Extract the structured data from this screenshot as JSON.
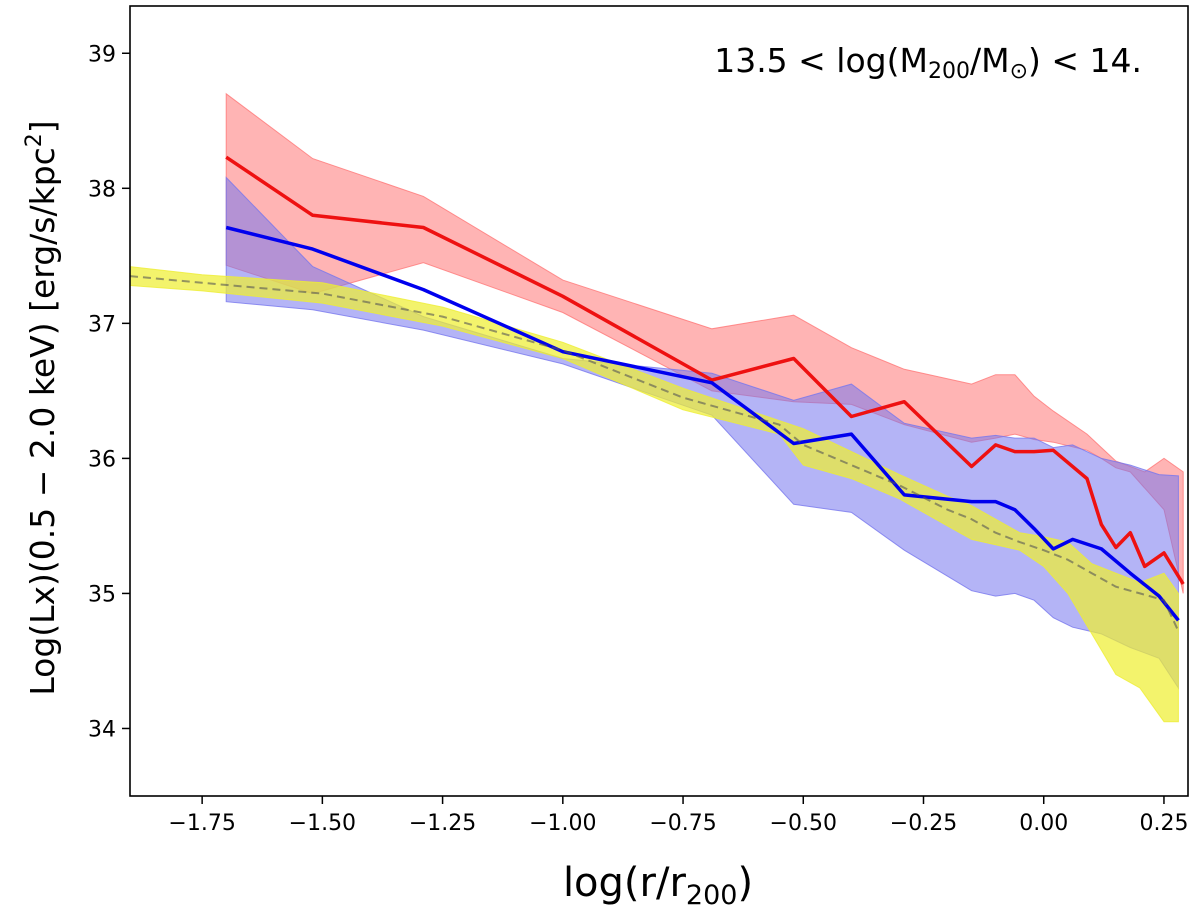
{
  "chart_data": {
    "type": "line",
    "title": "",
    "annotation": {
      "prefix": "13.5 < log(M",
      "sub1": "200",
      "mid": "/M",
      "sub2": "⊙",
      "suffix": ") < 14."
    },
    "xlabel": {
      "main": "log(r/r",
      "sub": "200",
      "close": ")"
    },
    "ylabel": {
      "main": "Log(Lx)(0.5 − 2.0 keV) [erg/s/kpc",
      "sup": "2",
      "close": "]"
    },
    "xlim": [
      -1.9,
      0.3
    ],
    "ylim": [
      33.5,
      39.35
    ],
    "x_ticks": [
      -1.75,
      -1.5,
      -1.25,
      -1.0,
      -0.75,
      -0.5,
      -0.25,
      0.0,
      0.25
    ],
    "x_tick_labels": [
      "−1.75",
      "−1.50",
      "−1.25",
      "−1.00",
      "−0.75",
      "−0.50",
      "−0.25",
      "0.00",
      "0.25"
    ],
    "y_ticks": [
      34,
      35,
      36,
      37,
      38,
      39
    ],
    "y_tick_labels": [
      "34",
      "35",
      "36",
      "37",
      "38",
      "39"
    ],
    "grid": false,
    "series": [
      {
        "name": "red",
        "color": "#ee1111",
        "band_color": "#ff7777",
        "x": [
          -1.7,
          -1.52,
          -1.29,
          -1.0,
          -0.69,
          -0.52,
          -0.4,
          -0.29,
          -0.15,
          -0.1,
          -0.06,
          -0.02,
          0.02,
          0.09,
          0.12,
          0.15,
          0.18,
          0.21,
          0.25,
          0.29
        ],
        "values": [
          38.23,
          37.8,
          37.71,
          37.2,
          36.58,
          36.74,
          36.31,
          36.42,
          35.94,
          36.1,
          36.05,
          36.05,
          36.06,
          35.85,
          35.51,
          35.34,
          35.45,
          35.2,
          35.3,
          35.07
        ],
        "upper": [
          38.7,
          38.22,
          37.94,
          37.32,
          36.96,
          37.06,
          36.82,
          36.66,
          36.55,
          36.62,
          36.62,
          36.46,
          36.35,
          36.18,
          36.08,
          35.98,
          35.94,
          35.9,
          36.0,
          35.9
        ],
        "lower": [
          37.43,
          37.22,
          37.45,
          37.08,
          36.5,
          36.42,
          36.4,
          36.25,
          36.12,
          36.15,
          36.18,
          36.14,
          36.12,
          36.06,
          36.0,
          35.93,
          35.9,
          35.78,
          35.62,
          35.0
        ]
      },
      {
        "name": "blue",
        "color": "#0000ee",
        "band_color": "#7777ee",
        "x": [
          -1.7,
          -1.52,
          -1.29,
          -1.0,
          -0.69,
          -0.52,
          -0.4,
          -0.29,
          -0.15,
          -0.1,
          -0.06,
          -0.02,
          0.02,
          0.06,
          0.12,
          0.18,
          0.24,
          0.28
        ],
        "values": [
          37.71,
          37.55,
          37.25,
          36.79,
          36.56,
          36.11,
          36.18,
          35.73,
          35.68,
          35.68,
          35.62,
          35.48,
          35.33,
          35.4,
          35.33,
          35.15,
          34.98,
          34.8
        ],
        "upper": [
          38.08,
          37.42,
          37.05,
          36.74,
          36.63,
          36.43,
          36.55,
          36.26,
          36.15,
          36.17,
          36.15,
          36.15,
          36.08,
          36.1,
          36.0,
          35.95,
          35.88,
          35.87
        ],
        "lower": [
          37.16,
          37.1,
          36.95,
          36.7,
          36.32,
          35.66,
          35.6,
          35.32,
          35.02,
          34.98,
          35.0,
          34.95,
          34.82,
          34.75,
          34.7,
          34.6,
          34.52,
          34.3
        ]
      },
      {
        "name": "yellow",
        "color": "#555555",
        "band_color": "#eeee33",
        "x": [
          -1.9,
          -1.75,
          -1.5,
          -1.25,
          -1.0,
          -0.75,
          -0.55,
          -0.5,
          -0.4,
          -0.3,
          -0.2,
          -0.15,
          -0.1,
          -0.05,
          0.0,
          0.05,
          0.1,
          0.15,
          0.2,
          0.25,
          0.28
        ],
        "values": [
          37.35,
          37.3,
          37.22,
          37.05,
          36.8,
          36.45,
          36.25,
          36.1,
          35.95,
          35.8,
          35.62,
          35.55,
          35.45,
          35.38,
          35.32,
          35.25,
          35.15,
          35.05,
          35.0,
          34.95,
          34.72
        ],
        "upper": [
          37.42,
          37.36,
          37.3,
          37.12,
          36.86,
          36.52,
          36.28,
          36.22,
          36.05,
          35.88,
          35.72,
          35.65,
          35.55,
          35.45,
          35.42,
          35.38,
          35.22,
          35.15,
          35.08,
          35.15,
          35.0
        ],
        "lower": [
          37.28,
          37.24,
          37.15,
          36.98,
          36.74,
          36.36,
          36.18,
          35.95,
          35.85,
          35.7,
          35.5,
          35.4,
          35.36,
          35.32,
          35.2,
          35.0,
          34.7,
          34.4,
          34.3,
          34.05,
          34.05
        ]
      }
    ]
  }
}
